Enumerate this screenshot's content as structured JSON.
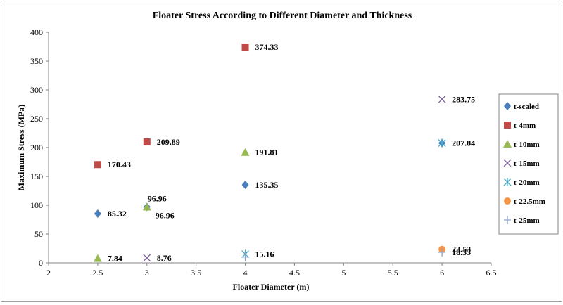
{
  "chart_data": {
    "type": "scatter",
    "title": "Floater Stress According  to Different  Diameter and Thickness",
    "xlabel": "Floater Diameter (m)",
    "ylabel": "Maximum Stress (MPa)",
    "xlim": [
      2,
      6.5
    ],
    "ylim": [
      0,
      400
    ],
    "xticks": [
      "2",
      "2.5",
      "3",
      "3.5",
      "4",
      "4.5",
      "5",
      "5.5",
      "6",
      "6.5"
    ],
    "yticks": [
      "0",
      "50",
      "100",
      "150",
      "200",
      "250",
      "300",
      "350",
      "400"
    ],
    "grid": false,
    "legend_position": "right",
    "series": [
      {
        "name": "t-scaled",
        "marker": "diamond",
        "color": "#4a7ebb",
        "points": [
          {
            "x": 2.5,
            "y": 85.32,
            "label": "85.32"
          },
          {
            "x": 3,
            "y": 96.96,
            "label": ""
          },
          {
            "x": 4,
            "y": 135.35,
            "label": "135.35"
          },
          {
            "x": 6,
            "y": 207.84,
            "label": "207.84"
          }
        ]
      },
      {
        "name": "t-4mm",
        "marker": "square",
        "color": "#be4b48",
        "points": [
          {
            "x": 2.5,
            "y": 170.43,
            "label": "170.43"
          },
          {
            "x": 3,
            "y": 209.89,
            "label": "209.89"
          },
          {
            "x": 4,
            "y": 374.33,
            "label": "374.33"
          }
        ]
      },
      {
        "name": "t-10mm",
        "marker": "triangle",
        "color": "#98b954",
        "points": [
          {
            "x": 2.5,
            "y": 7.84,
            "label": "7.84"
          },
          {
            "x": 3,
            "y": 96.96,
            "label": "96.96"
          },
          {
            "x": 4,
            "y": 191.81,
            "label": "191.81"
          }
        ]
      },
      {
        "name": "t-15mm",
        "marker": "x",
        "color": "#7d60a0",
        "points": [
          {
            "x": 3,
            "y": 8.76,
            "label": "8.76"
          },
          {
            "x": 6,
            "y": 283.75,
            "label": "283.75"
          }
        ]
      },
      {
        "name": "t-20mm",
        "marker": "star",
        "color": "#46aac5",
        "points": [
          {
            "x": 4,
            "y": 15.16,
            "label": "15.16"
          },
          {
            "x": 6,
            "y": 207.84,
            "label": ""
          }
        ]
      },
      {
        "name": "t-22.5mm",
        "marker": "circle",
        "color": "#f79646",
        "points": [
          {
            "x": 6,
            "y": 23.53,
            "label": "23.53"
          }
        ]
      },
      {
        "name": "t-25mm",
        "marker": "plus",
        "color": "#8fa3c9",
        "points": [
          {
            "x": 4,
            "y": 10.0,
            "label": ""
          },
          {
            "x": 6,
            "y": 18.33,
            "label": "18.33"
          }
        ]
      }
    ],
    "annotations": [
      {
        "text": "96.96",
        "x": 3,
        "y": 96.96,
        "placement": "below-right"
      }
    ]
  }
}
